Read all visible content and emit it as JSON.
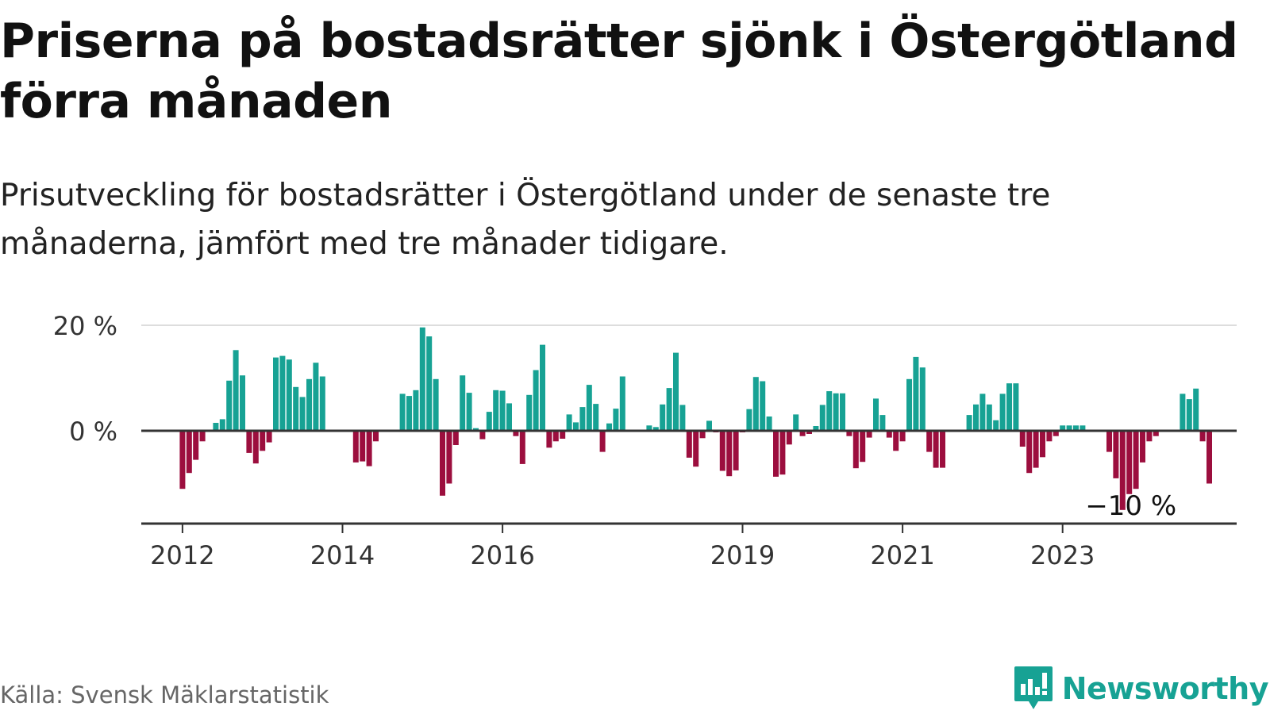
{
  "title": "Priserna på bostadsrätter sjönk i Östergötland förra månaden",
  "subtitle": "Prisutveckling för bostadsrätter i Östergötland under de senaste tre månaderna, jämfört med tre månader tidigare.",
  "source": "Källa: Svensk Mäklarstatistik",
  "brand": {
    "name": "Newsworthy",
    "logo_icon": "bar-chart-speech-bubble-icon",
    "color": "#17a294"
  },
  "colors": {
    "positive": "#17a294",
    "negative": "#9c0e3e",
    "axis": "#333333",
    "grid": "#dddddd"
  },
  "chart_data": {
    "type": "bar",
    "y_tick_labels": [
      "20 %",
      "0 %"
    ],
    "y_ticks": [
      20,
      0
    ],
    "ylim": [
      -17.5,
      20
    ],
    "grid": "horizontal",
    "x_tick_labels": [
      "2012",
      "2014",
      "2016",
      "2019",
      "2021",
      "2023"
    ],
    "x_tick_positions": [
      "2012-01",
      "2014-01",
      "2016-01",
      "2019-01",
      "2021-01",
      "2023-01"
    ],
    "x_start": "2011-07",
    "annotation": {
      "text": "−10 %",
      "at": "2023-11"
    },
    "values": [
      0,
      0,
      0,
      0,
      0,
      0,
      -11,
      -8,
      -5.5,
      -2,
      0,
      1.5,
      2.2,
      9.5,
      15.3,
      10.5,
      -4.2,
      -6.2,
      -3.8,
      -2.2,
      13.9,
      14.2,
      13.5,
      8.3,
      6.4,
      9.8,
      12.9,
      10.3,
      0,
      0,
      0,
      0,
      -6,
      -5.8,
      -6.7,
      -2,
      0,
      0,
      0,
      7,
      6.6,
      7.7,
      19.6,
      17.9,
      9.8,
      -12.3,
      -10,
      -2.7,
      10.5,
      7.2,
      0.5,
      -1.6,
      3.6,
      7.7,
      7.6,
      5.2,
      -1,
      -6.3,
      6.8,
      11.5,
      16.3,
      -3.2,
      -2,
      -1.5,
      3.1,
      1.6,
      4.5,
      8.7,
      5.1,
      -4,
      1.4,
      4.2,
      10.3,
      0,
      0,
      0,
      1,
      0.7,
      5,
      8.1,
      14.8,
      4.9,
      -5.1,
      -6.8,
      -1.4,
      1.9,
      -0.3,
      -7.6,
      -8.6,
      -7.5,
      -0.3,
      4.1,
      10.2,
      9.4,
      2.7,
      -8.7,
      -8.3,
      -2.6,
      3.1,
      -1,
      -0.6,
      0.9,
      4.9,
      7.5,
      7.1,
      7.1,
      -1,
      -7.1,
      -5.9,
      -1.3,
      6.1,
      3,
      -1.3,
      -3.8,
      -2,
      9.8,
      14,
      12,
      -4,
      -7,
      -7,
      0,
      0,
      0,
      3,
      5,
      7,
      5,
      2,
      7,
      9,
      9,
      -3,
      -8,
      -7,
      -5,
      -2,
      -1,
      1,
      1,
      1,
      1,
      0,
      0,
      0,
      -4,
      -9,
      -15,
      -12,
      -11,
      -6,
      -2,
      -1,
      0,
      0,
      0,
      7,
      6,
      8,
      -2,
      -10
    ]
  }
}
